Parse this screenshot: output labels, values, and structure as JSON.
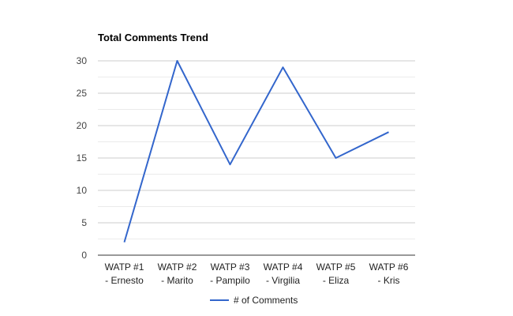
{
  "chart_data": {
    "type": "line",
    "title": "Total Comments Trend",
    "xlabel": "",
    "ylabel": "",
    "categories": [
      [
        "WATP #1",
        "- Ernesto"
      ],
      [
        "WATP #2",
        "- Marito"
      ],
      [
        "WATP #3",
        "- Pampilo"
      ],
      [
        "WATP #4",
        "- Virgilia"
      ],
      [
        "WATP #5",
        "- Eliza"
      ],
      [
        "WATP #6",
        "- Kris"
      ]
    ],
    "series": [
      {
        "name": "# of Comments",
        "values": [
          2,
          30,
          14,
          29,
          15,
          19
        ],
        "color": "#3366cc"
      }
    ],
    "ylim": [
      0,
      30
    ],
    "yticks": [
      0,
      5,
      10,
      15,
      20,
      25,
      30
    ],
    "grid": true,
    "legend": "bottom"
  }
}
